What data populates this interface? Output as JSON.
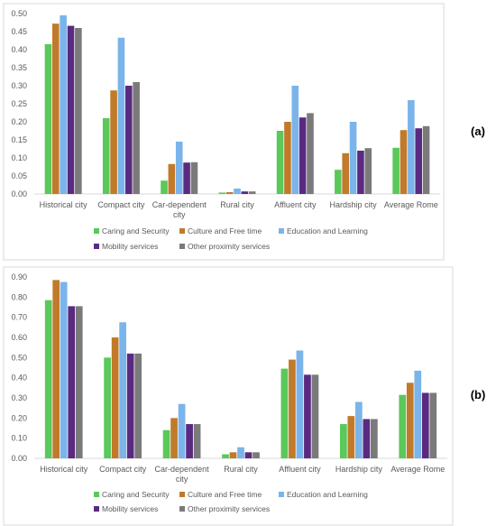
{
  "series_colors": [
    "#5ac85a",
    "#c07a2a",
    "#7ab4ea",
    "#5a2a80",
    "#7a7a7a"
  ],
  "chart_data": [
    {
      "panel_label": "(a)",
      "type": "bar",
      "categories": [
        "Historical city",
        "Compact city",
        "Car-dependent city",
        "Rural city",
        "Affluent city",
        "Hardship city",
        "Average Rome"
      ],
      "series": [
        {
          "name": "Caring and Security",
          "values": [
            0.415,
            0.21,
            0.037,
            0.004,
            0.175,
            0.067,
            0.128
          ]
        },
        {
          "name": "Culture and Free time",
          "values": [
            0.472,
            0.287,
            0.083,
            0.005,
            0.2,
            0.113,
            0.177
          ]
        },
        {
          "name": "Education and Learning",
          "values": [
            0.495,
            0.433,
            0.145,
            0.015,
            0.3,
            0.2,
            0.26
          ]
        },
        {
          "name": "Mobility services",
          "values": [
            0.466,
            0.3,
            0.087,
            0.007,
            0.212,
            0.12,
            0.182
          ]
        },
        {
          "name": "Other proximity services",
          "values": [
            0.46,
            0.31,
            0.088,
            0.007,
            0.224,
            0.127,
            0.188
          ]
        }
      ],
      "ylim": [
        0,
        0.5
      ],
      "yticks": [
        "0.00",
        "0.05",
        "0.10",
        "0.15",
        "0.20",
        "0.25",
        "0.30",
        "0.35",
        "0.40",
        "0.45",
        "0.50"
      ],
      "grid": false,
      "legend_position": "bottom"
    },
    {
      "panel_label": "(b)",
      "type": "bar",
      "categories": [
        "Historical city",
        "Compact city",
        "Car-dependent city",
        "Rural city",
        "Affluent city",
        "Hardship city",
        "Average Rome"
      ],
      "series": [
        {
          "name": "Caring and Security",
          "values": [
            0.785,
            0.5,
            0.14,
            0.02,
            0.445,
            0.17,
            0.315
          ]
        },
        {
          "name": "Culture and Free time",
          "values": [
            0.885,
            0.6,
            0.2,
            0.03,
            0.49,
            0.21,
            0.375
          ]
        },
        {
          "name": "Education and Learning",
          "values": [
            0.875,
            0.675,
            0.27,
            0.055,
            0.535,
            0.28,
            0.435
          ]
        },
        {
          "name": "Mobility services",
          "values": [
            0.755,
            0.52,
            0.17,
            0.03,
            0.415,
            0.195,
            0.325
          ]
        },
        {
          "name": "Other proximity services",
          "values": [
            0.755,
            0.52,
            0.17,
            0.03,
            0.415,
            0.195,
            0.325
          ]
        }
      ],
      "ylim": [
        0,
        0.9
      ],
      "yticks": [
        "0.00",
        "0.10",
        "0.20",
        "0.30",
        "0.40",
        "0.50",
        "0.60",
        "0.70",
        "0.80",
        "0.90"
      ],
      "grid": false,
      "legend_position": "bottom"
    }
  ]
}
